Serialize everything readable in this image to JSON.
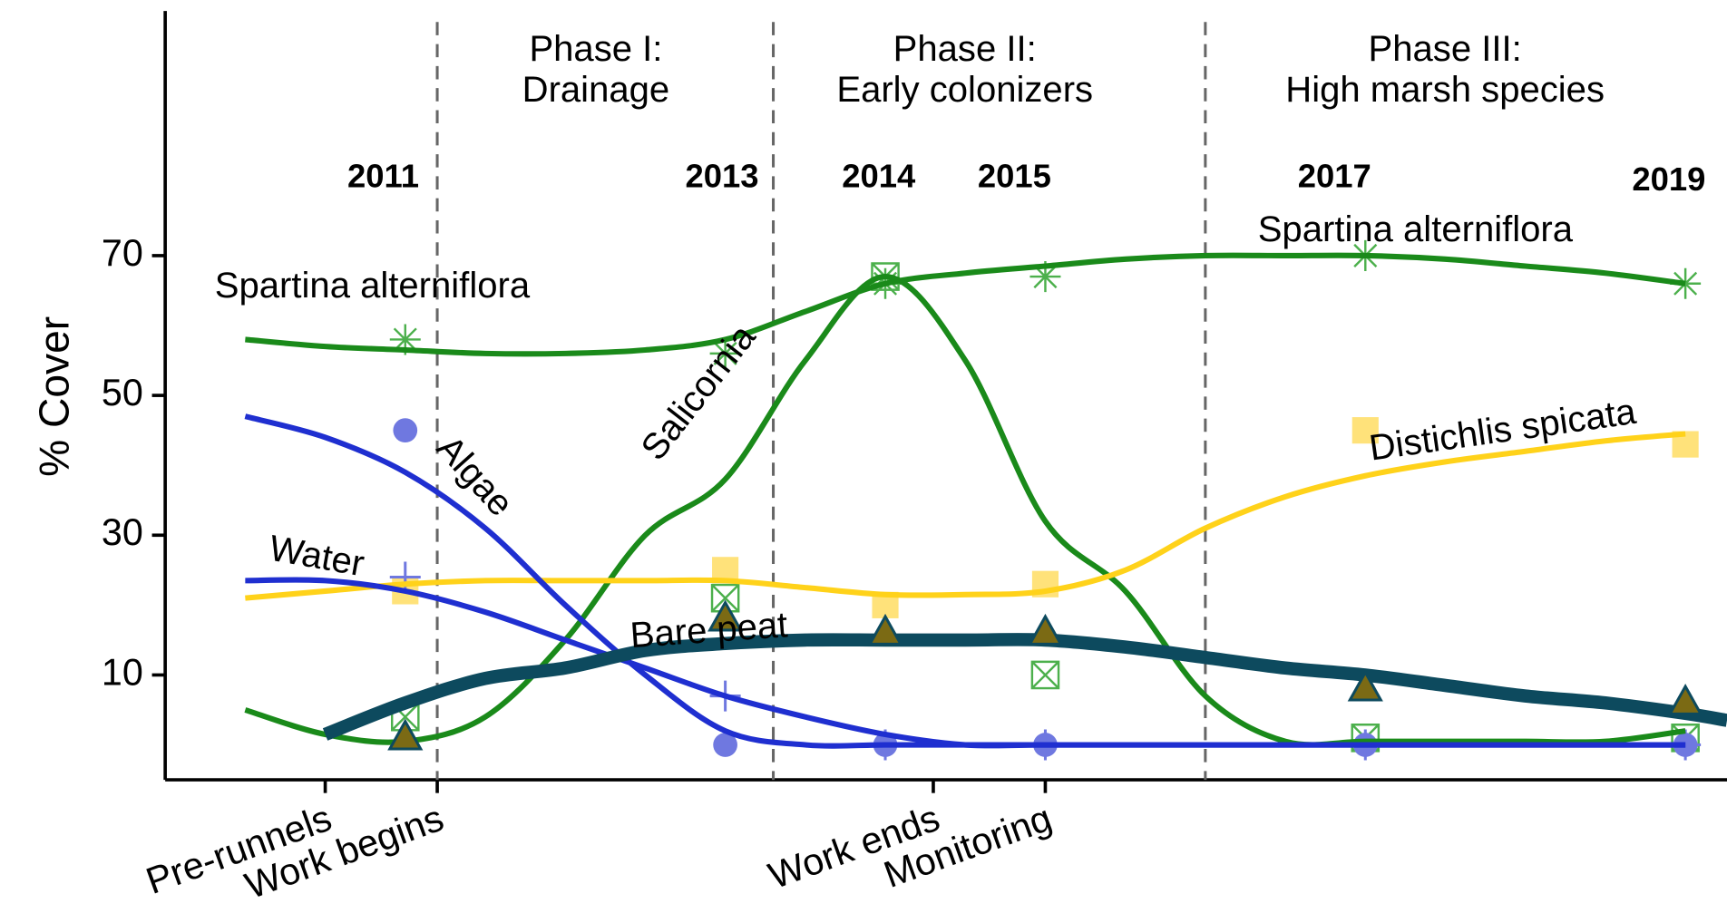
{
  "chart_data": {
    "type": "line",
    "ylabel": "% Cover",
    "x": [
      2011,
      2013,
      2014,
      2015,
      2017,
      2019
    ],
    "xlim": [
      2009.5,
      2019.26
    ],
    "xticks": [
      {
        "value": 2010.5,
        "label": "Pre-runnels"
      },
      {
        "value": 2011.2,
        "label": "Work begins"
      },
      {
        "value": 2014.3,
        "label": "Work ends"
      },
      {
        "value": 2015,
        "label": "Monitoring"
      }
    ],
    "ylim": [
      -5,
      105
    ],
    "yticks": [
      10,
      30,
      50,
      70
    ],
    "phase_boundaries": [
      2011.2,
      2013.3,
      2016.0
    ],
    "phases": [
      [
        "Phase I:",
        "Drainage"
      ],
      [
        "Phase II:",
        "Early colonizers"
      ],
      [
        "Phase III:",
        "High marsh species"
      ]
    ],
    "curve_x": [
      2010,
      2010.5,
      2011,
      2011.5,
      2012,
      2012.5,
      2013,
      2013.5,
      2014,
      2014.5,
      2015,
      2015.5,
      2016,
      2016.5,
      2017,
      2017.5,
      2018,
      2018.5,
      2019,
      2019.26
    ],
    "series": [
      {
        "name": "Spartina alterniflora",
        "color": "#1a8a1a",
        "marker_color": "#4cb04c",
        "marker": "asterisk",
        "line_width": 5,
        "values": [
          58,
          56,
          66,
          67,
          70,
          66
        ],
        "curve": [
          58,
          57,
          56.5,
          56,
          56,
          56.5,
          58,
          62,
          66,
          67.5,
          68.5,
          69.5,
          70,
          70,
          70,
          69.5,
          68.5,
          67.5,
          66,
          null
        ]
      },
      {
        "name": "Salicornia",
        "color": "#1a8a1a",
        "marker_color": "#4cb04c",
        "marker": "boxx",
        "line_width": 5,
        "values": [
          4,
          21,
          67,
          10,
          1,
          1
        ],
        "curve": [
          5,
          1.5,
          0.5,
          4,
          15,
          30,
          38,
          55,
          67,
          55,
          32,
          22,
          7,
          0.5,
          0.5,
          0.5,
          0.5,
          0.5,
          2,
          null
        ]
      },
      {
        "name": "Distichlis spicata",
        "color": "#ffd21a",
        "marker_color": "#ffe27a",
        "marker": "square",
        "line_width": 5,
        "values": [
          22,
          25,
          20,
          23,
          45,
          43
        ],
        "curve": [
          21,
          22,
          23,
          23.5,
          23.5,
          23.5,
          23.5,
          22.5,
          21.5,
          21.5,
          22,
          25,
          31,
          35.5,
          38.5,
          40.5,
          42,
          43.5,
          44.5,
          null
        ]
      },
      {
        "name": "Algae",
        "color": "#1f2fd0",
        "marker_color": "#6f78e0",
        "marker": "circle",
        "line_width": 5,
        "values": [
          45,
          0,
          0,
          0,
          0,
          0
        ],
        "curve": [
          47,
          44,
          39,
          31,
          20,
          10,
          2,
          0,
          0,
          0,
          0,
          0,
          0,
          0,
          0,
          0,
          0,
          0,
          0,
          null
        ]
      },
      {
        "name": "Water",
        "color": "#1f2fd0",
        "marker_color": "#6f78e0",
        "marker": "plus",
        "line_width": 5,
        "values": [
          24,
          7,
          0,
          0,
          0,
          0
        ],
        "curve": [
          23.5,
          23.5,
          22,
          19,
          15,
          11,
          7,
          4,
          1.5,
          0,
          0,
          0,
          0,
          0,
          0,
          0,
          0,
          0,
          0,
          null
        ]
      },
      {
        "name": "Bare peat",
        "color": "#0d4a5e",
        "marker_color": "#7b6a14",
        "marker": "triangle",
        "line_width": 12,
        "values": [
          1,
          18,
          16,
          16,
          8,
          6
        ],
        "curve": [
          null,
          1.5,
          6,
          9.5,
          11,
          13.5,
          14.5,
          15,
          15,
          15,
          15,
          14,
          12.5,
          11,
          10,
          8.5,
          7,
          6,
          4.5,
          3.5
        ]
      }
    ],
    "annotations": [
      "Spartina alterniflora"
    ]
  }
}
